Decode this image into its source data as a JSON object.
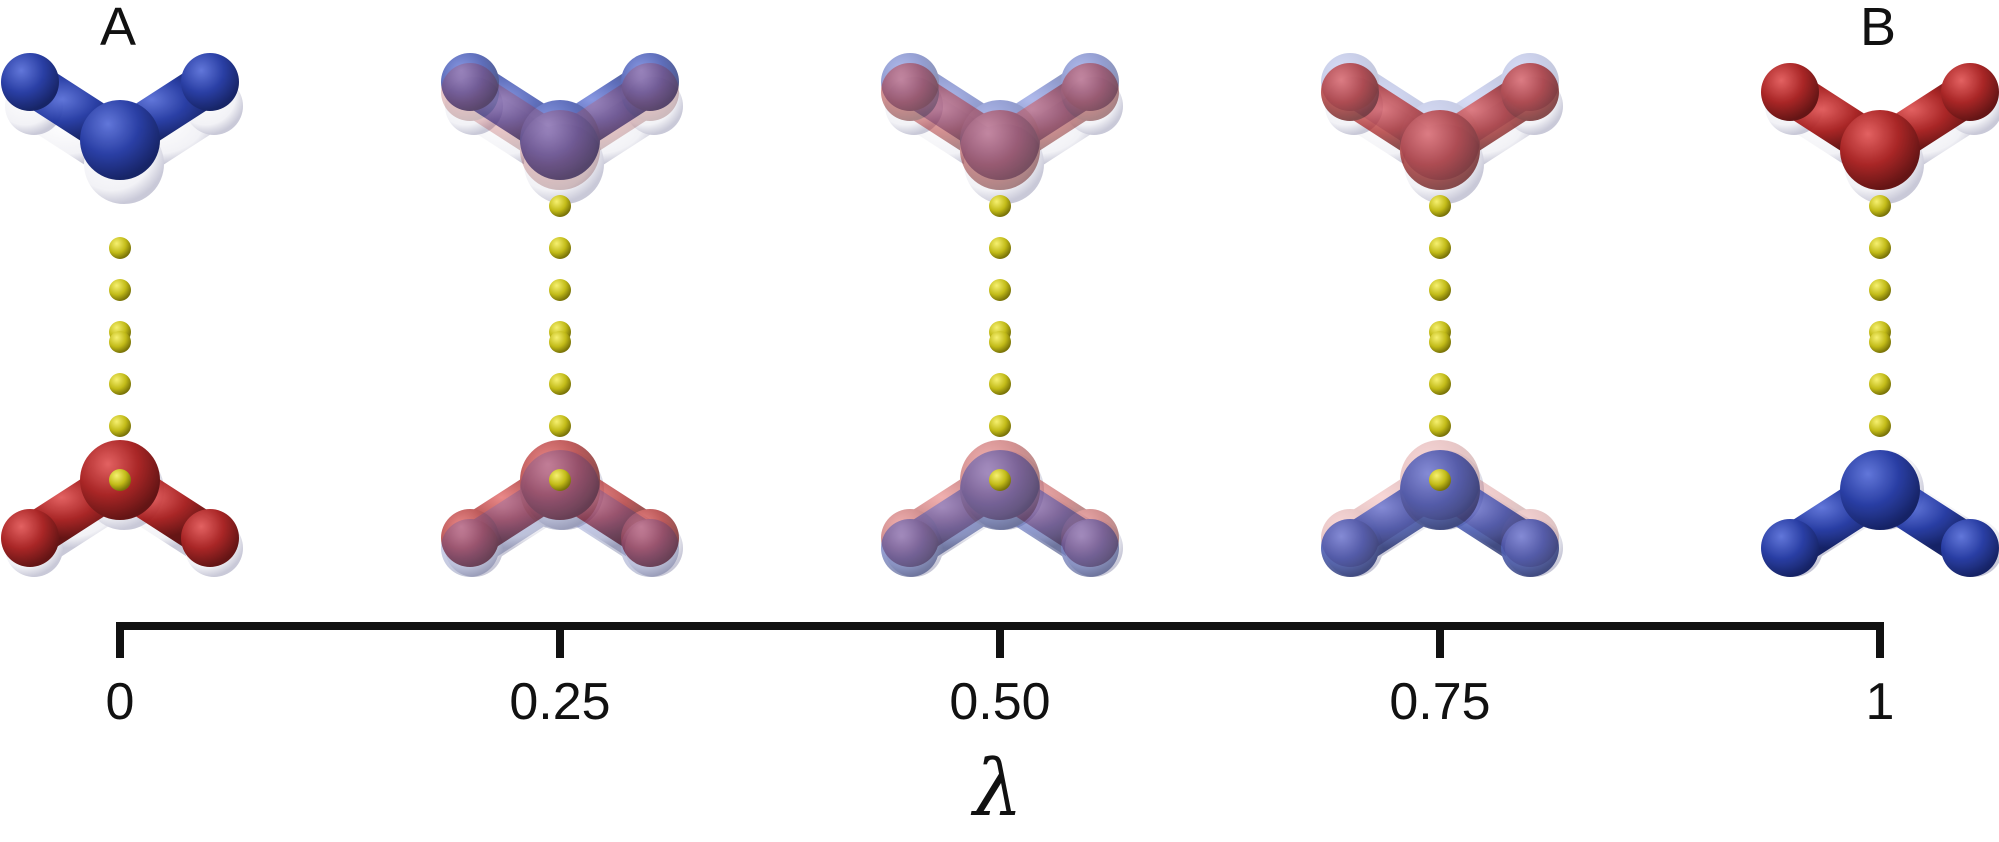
{
  "labels": {
    "start": "A",
    "end": "B"
  },
  "axis": {
    "title": "λ",
    "ticks": [
      {
        "value": 0,
        "label": "0"
      },
      {
        "value": 0.25,
        "label": "0.25"
      },
      {
        "value": 0.5,
        "label": "0.50"
      },
      {
        "value": 0.75,
        "label": "0.75"
      },
      {
        "value": 1,
        "label": "1"
      }
    ],
    "range": [
      0,
      1
    ]
  },
  "colors": {
    "state_a_blue": "#1a2f9a",
    "state_b_red": "#a01818",
    "dummy_atom_yellow": "#c8c21a",
    "axis": "#111111"
  },
  "structures": [
    {
      "lambda": 0,
      "top_molecule": "blue tripod (state A)",
      "bottom_molecule": "red tripod (state A)"
    },
    {
      "lambda": 0.25,
      "top_molecule": "mostly blue, faint red",
      "bottom_molecule": "mostly red, faint blue"
    },
    {
      "lambda": 0.5,
      "top_molecule": "pale blue / pale red blend",
      "bottom_molecule": "pale blue / pale red blend"
    },
    {
      "lambda": 0.75,
      "top_molecule": "mostly red, faint blue",
      "bottom_molecule": "mostly blue, faint red"
    },
    {
      "lambda": 1,
      "top_molecule": "red tripod (state B)",
      "bottom_molecule": "blue tripod (state B)"
    }
  ]
}
